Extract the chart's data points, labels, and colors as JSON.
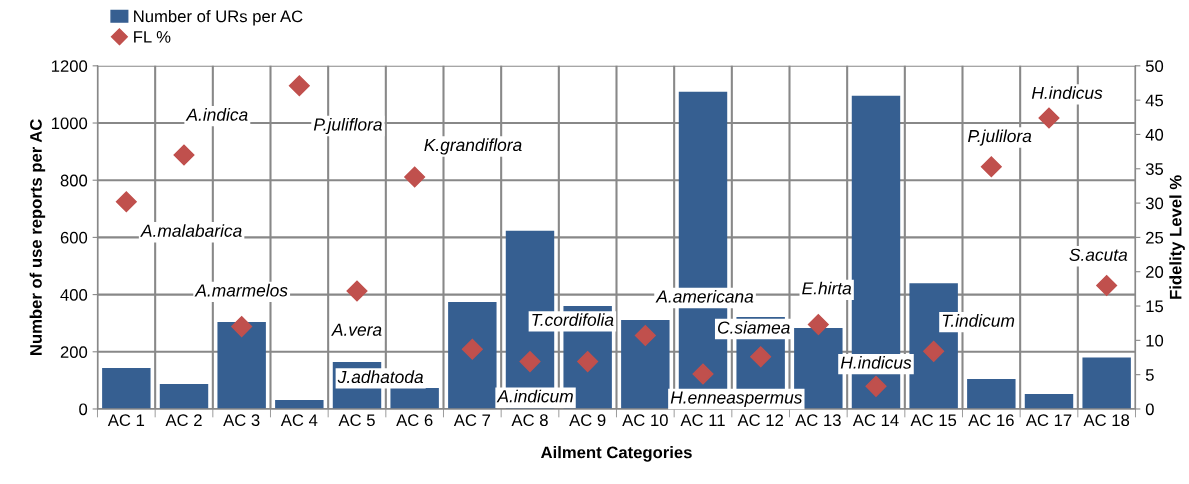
{
  "chart_data": {
    "type": "bar",
    "categories": [
      "AC 1",
      "AC 2",
      "AC 3",
      "AC 4",
      "AC 5",
      "AC 6",
      "AC 7",
      "AC 8",
      "AC 9",
      "AC 10",
      "AC 11",
      "AC 12",
      "AC 13",
      "AC 14",
      "AC 15",
      "AC 16",
      "AC 17",
      "AC 18"
    ],
    "series": [
      {
        "name": "Number of URs per AC",
        "color": "#365f91",
        "values": [
          143,
          87,
          304,
          31,
          164,
          73,
          374,
          623,
          360,
          311,
          1109,
          322,
          283,
          1095,
          440,
          105,
          52,
          180
        ]
      },
      {
        "name": "FL %",
        "type": "scatter",
        "axis": "y2",
        "color": "#c0504d",
        "marker": "diamond",
        "values": [
          30.2,
          37.0,
          12.0,
          47.1,
          17.2,
          33.8,
          8.7,
          6.9,
          6.9,
          10.7,
          5.1,
          7.6,
          12.3,
          3.3,
          8.4,
          35.3,
          42.4,
          18.0
        ]
      }
    ],
    "xlabel": "Ailment Categories",
    "ylabel": "Number of use reports per AC",
    "y2label": "Fidelity Level %",
    "ylim": [
      0,
      1200
    ],
    "yticks": [
      0,
      200,
      400,
      600,
      800,
      1000,
      1200
    ],
    "y2lim": [
      0,
      50
    ],
    "y2ticks": [
      0,
      5,
      10,
      15,
      20,
      25,
      30,
      35,
      40,
      45,
      50
    ],
    "grid": true,
    "legend": "top left",
    "annotations": [
      "A.malabarica",
      "A.indica",
      "A.marmelos",
      "P.juliflora",
      "A.vera",
      "K.grandiflora",
      "J.adhatoda",
      "A.indicum",
      "T.cordifolia",
      "A.americana",
      "H.enneaspermus",
      "C.siamea",
      "E.hirta",
      "H.indicus",
      "T.indicum",
      "P.julilora",
      "H.indicus",
      "S.acuta"
    ]
  }
}
